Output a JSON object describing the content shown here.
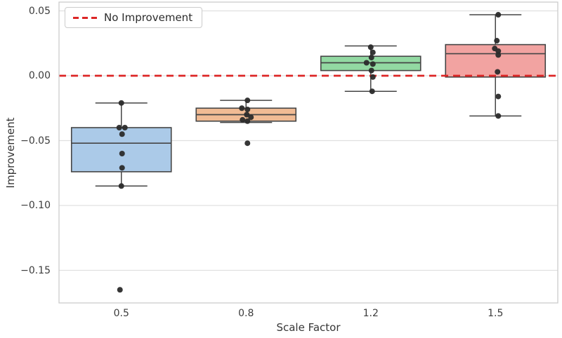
{
  "figure": {
    "background": "#ffffff",
    "text_color": "#363636",
    "grid_color": "#e0e0e0",
    "spine_color": "#cccccc",
    "yticks": [
      {
        "value": 0.05,
        "label": "0.05"
      },
      {
        "value": 0.0,
        "label": "0.00"
      },
      {
        "value": -0.05,
        "label": "−0.05"
      },
      {
        "value": -0.1,
        "label": "−0.10"
      },
      {
        "value": -0.15,
        "label": "−0.15"
      }
    ],
    "legend": {
      "label": "No Improvement"
    }
  },
  "chart_data": {
    "type": "box",
    "title": "",
    "xlabel": "Scale Factor",
    "ylabel": "Improvement",
    "categories": [
      "0.5",
      "0.8",
      "1.2",
      "1.5"
    ],
    "ylim": [
      -0.175,
      0.057
    ],
    "grid": "horizontal-only",
    "legend_position": "upper-left",
    "reference_line": {
      "y": 0.0,
      "label": "No Improvement",
      "color": "#dc2626",
      "style": "dashed"
    },
    "box_edge_color": "#454545",
    "point_color": "#2b2b2b",
    "series": [
      {
        "category": "0.5",
        "fill_color": "#abcae8",
        "whisker_low": -0.085,
        "q1": -0.074,
        "median": -0.052,
        "q3": -0.04,
        "whisker_high": -0.021,
        "points": [
          {
            "v": -0.021,
            "dx": 0
          },
          {
            "v": -0.04,
            "dx": -3
          },
          {
            "v": -0.04,
            "dx": 5
          },
          {
            "v": -0.045,
            "dx": 1
          },
          {
            "v": -0.06,
            "dx": 1
          },
          {
            "v": -0.071,
            "dx": 1
          },
          {
            "v": -0.085,
            "dx": 0
          },
          {
            "v": -0.165,
            "dx": -2
          }
        ]
      },
      {
        "category": "0.8",
        "fill_color": "#f1bb94",
        "whisker_low": -0.036,
        "q1": -0.035,
        "median": -0.03,
        "q3": -0.025,
        "whisker_high": -0.019,
        "points": [
          {
            "v": -0.019,
            "dx": 2
          },
          {
            "v": -0.025,
            "dx": -6
          },
          {
            "v": -0.026,
            "dx": 2
          },
          {
            "v": -0.03,
            "dx": 1
          },
          {
            "v": -0.032,
            "dx": 7
          },
          {
            "v": -0.034,
            "dx": -5
          },
          {
            "v": -0.035,
            "dx": 2
          },
          {
            "v": -0.052,
            "dx": 2
          }
        ]
      },
      {
        "category": "1.2",
        "fill_color": "#92d9a2",
        "whisker_low": -0.012,
        "q1": 0.004,
        "median": 0.01,
        "q3": 0.015,
        "whisker_high": 0.023,
        "points": [
          {
            "v": 0.022,
            "dx": 0
          },
          {
            "v": 0.018,
            "dx": 3
          },
          {
            "v": 0.014,
            "dx": 1
          },
          {
            "v": 0.01,
            "dx": -6
          },
          {
            "v": 0.009,
            "dx": 3
          },
          {
            "v": 0.004,
            "dx": 1
          },
          {
            "v": -0.001,
            "dx": 3
          },
          {
            "v": -0.012,
            "dx": 2
          }
        ]
      },
      {
        "category": "1.5",
        "fill_color": "#f2a3a1",
        "whisker_low": -0.031,
        "q1": -0.001,
        "median": 0.017,
        "q3": 0.024,
        "whisker_high": 0.047,
        "points": [
          {
            "v": 0.047,
            "dx": 4
          },
          {
            "v": 0.027,
            "dx": 2
          },
          {
            "v": 0.021,
            "dx": -1
          },
          {
            "v": 0.019,
            "dx": 4
          },
          {
            "v": 0.016,
            "dx": 4
          },
          {
            "v": 0.003,
            "dx": 3
          },
          {
            "v": -0.016,
            "dx": 4
          },
          {
            "v": -0.031,
            "dx": 4
          }
        ]
      }
    ]
  }
}
